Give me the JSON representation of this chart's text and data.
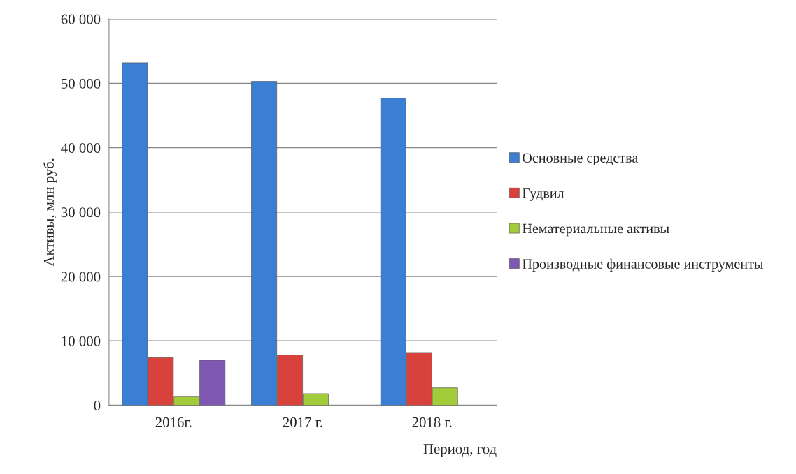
{
  "chart_data": {
    "type": "bar",
    "xlabel": "Период, год",
    "ylabel": "Активы, млн руб.",
    "categories": [
      "2016г.",
      "2017 г.",
      "2018 г."
    ],
    "series": [
      {
        "name": "Основные средства",
        "color": "#3b7fd4",
        "values": [
          53200,
          50300,
          47700
        ]
      },
      {
        "name": "Гудвил",
        "color": "#d9423c",
        "values": [
          7400,
          7800,
          8200
        ]
      },
      {
        "name": "Нематериальные активы",
        "color": "#a2cc3a",
        "values": [
          1400,
          1800,
          2700
        ]
      },
      {
        "name": "Производные финансовые инструменты",
        "color": "#7e58b3",
        "values": [
          7000,
          null,
          null
        ]
      }
    ],
    "ylim": [
      0,
      60000
    ],
    "yticks": [
      {
        "value": 0,
        "label": "0"
      },
      {
        "value": 10000,
        "label": "10 000"
      },
      {
        "value": 20000,
        "label": "20 000"
      },
      {
        "value": 30000,
        "label": "30 000"
      },
      {
        "value": 40000,
        "label": "40 000"
      },
      {
        "value": 50000,
        "label": "50 000"
      },
      {
        "value": 60000,
        "label": "60 000"
      }
    ],
    "grid": "y",
    "legend": "right"
  }
}
